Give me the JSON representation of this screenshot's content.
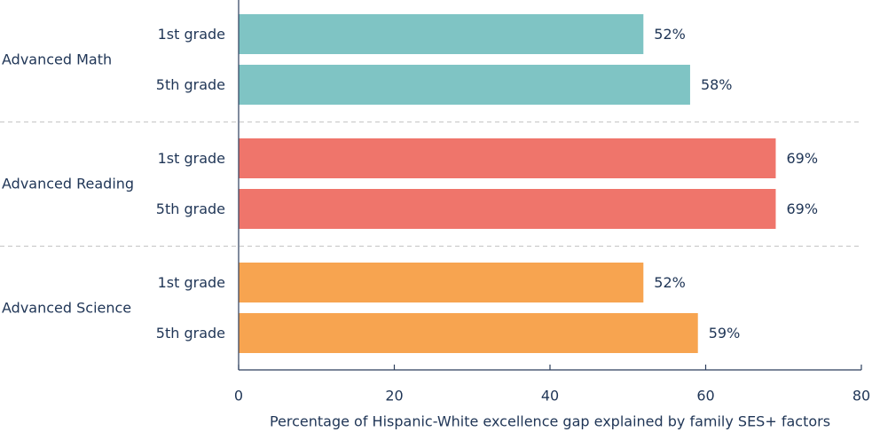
{
  "chart_data": {
    "type": "bar",
    "orientation": "horizontal",
    "xlabel": "Percentage of Hispanic-White excellence gap explained by family SES+ factors",
    "xlim": [
      0,
      80
    ],
    "xticks": [
      0,
      20,
      40,
      60,
      80
    ],
    "groups": [
      {
        "name": "Advanced Math",
        "color": "#7fc4c4",
        "categories": [
          "1st grade",
          "5th grade"
        ],
        "values": [
          52,
          58
        ],
        "value_labels": [
          "52%",
          "58%"
        ]
      },
      {
        "name": "Advanced Reading",
        "color": "#ef756b",
        "categories": [
          "1st grade",
          "5th grade"
        ],
        "values": [
          69,
          69
        ],
        "value_labels": [
          "69%",
          "69%"
        ]
      },
      {
        "name": "Advanced Science",
        "color": "#f7a450",
        "categories": [
          "1st grade",
          "5th grade"
        ],
        "values": [
          52,
          59
        ],
        "value_labels": [
          "52%",
          "59%"
        ]
      }
    ]
  }
}
